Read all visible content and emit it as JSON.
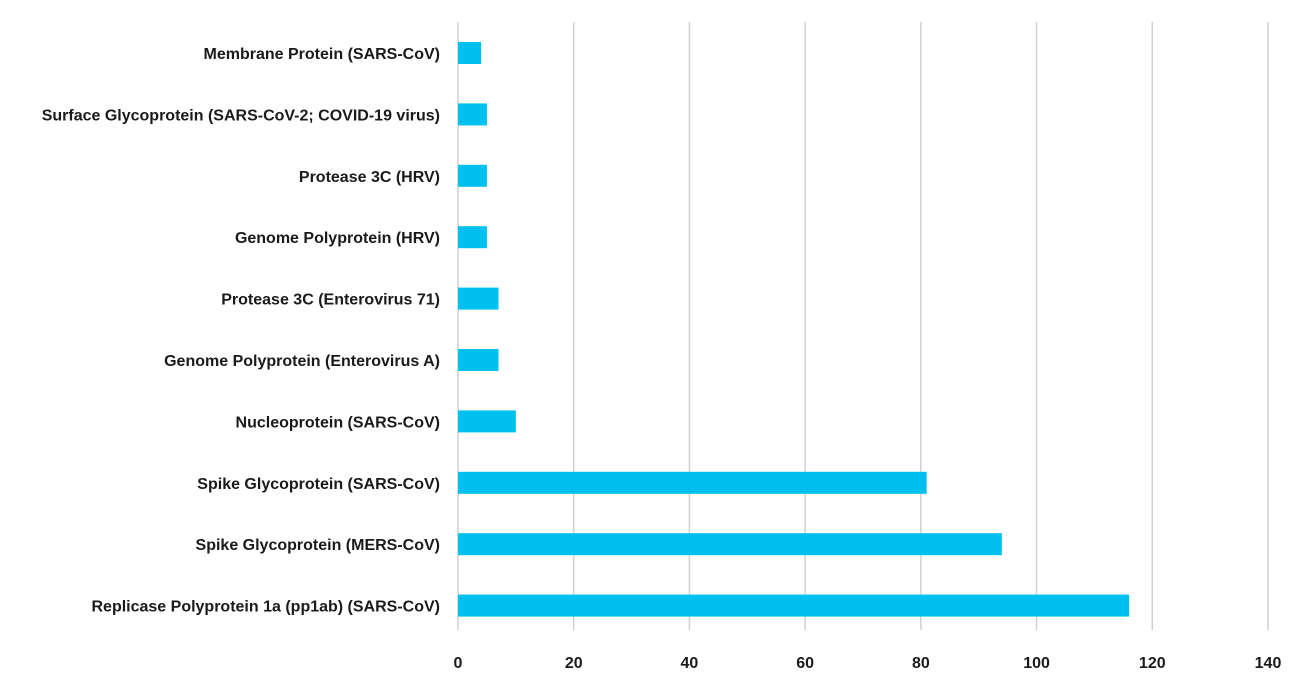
{
  "chart_data": {
    "type": "bar",
    "orientation": "horizontal",
    "categories": [
      "Membrane Protein (SARS-CoV)",
      "Surface Glycoprotein (SARS-CoV-2; COVID-19 virus)",
      "Protease 3C (HRV)",
      "Genome Polyprotein (HRV)",
      "Protease 3C (Enterovirus 71)",
      "Genome Polyprotein (Enterovirus A)",
      "Nucleoprotein (SARS-CoV)",
      "Spike Glycoprotein (SARS-CoV)",
      "Spike Glycoprotein (MERS-CoV)",
      "Replicase Polyprotein 1a (pp1ab) (SARS-CoV)"
    ],
    "values": [
      4,
      5,
      5,
      5,
      7,
      7,
      10,
      81,
      94,
      116
    ],
    "xlim": [
      0,
      140
    ],
    "xticks": [
      "0",
      "20",
      "40",
      "60",
      "80",
      "100",
      "120",
      "140"
    ],
    "title": "",
    "xlabel": "",
    "ylabel": "",
    "grid": "vertical",
    "legend": "none",
    "bar_color": "#00c0f0",
    "grid_color": "#d0d0d0"
  }
}
